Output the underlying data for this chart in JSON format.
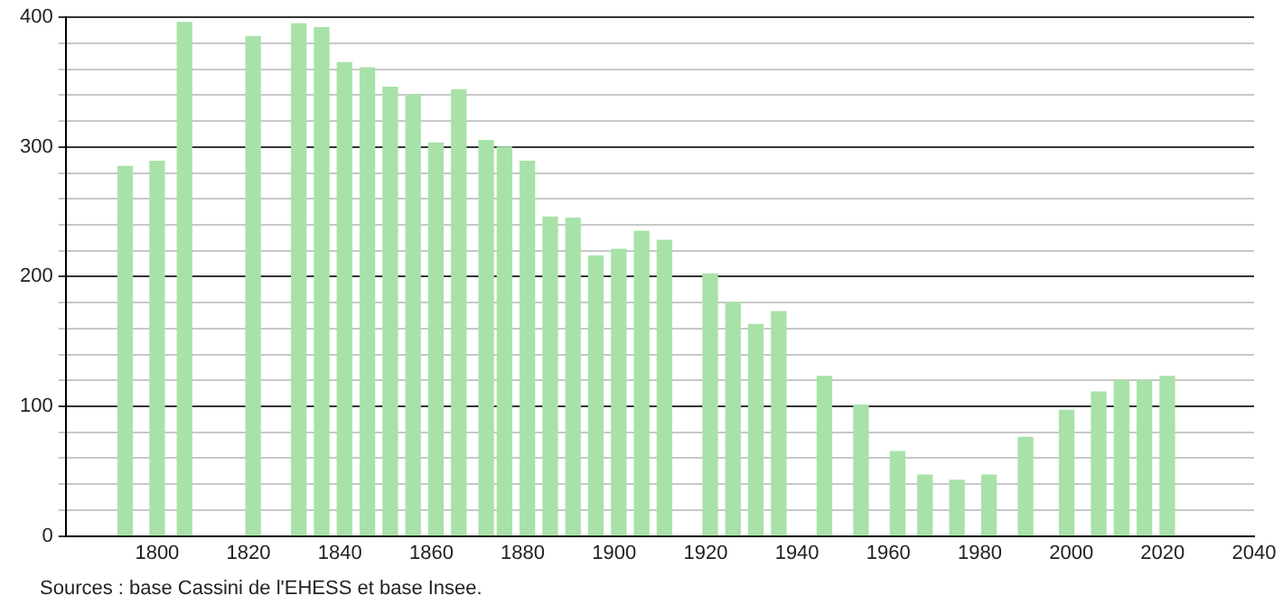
{
  "chart_data": {
    "type": "bar",
    "color": "#a8e2a8",
    "x": [
      1793,
      1800,
      1806,
      1821,
      1831,
      1836,
      1841,
      1846,
      1851,
      1856,
      1861,
      1866,
      1872,
      1876,
      1881,
      1886,
      1891,
      1896,
      1901,
      1906,
      1911,
      1921,
      1926,
      1931,
      1936,
      1946,
      1954,
      1962,
      1968,
      1975,
      1982,
      1990,
      1999,
      2006,
      2011,
      2016,
      2021
    ],
    "values": [
      285,
      289,
      396,
      385,
      395,
      392,
      365,
      361,
      346,
      340,
      303,
      344,
      305,
      300,
      289,
      246,
      245,
      216,
      221,
      235,
      228,
      202,
      180,
      163,
      173,
      123,
      101,
      65,
      47,
      43,
      47,
      76,
      97,
      111,
      120,
      120,
      123
    ],
    "xlim": [
      1780,
      2040
    ],
    "xticks": [
      1800,
      1820,
      1840,
      1860,
      1880,
      1900,
      1920,
      1940,
      1960,
      1980,
      2000,
      2020,
      2040
    ],
    "ylim": [
      0,
      400
    ],
    "yticks": [
      0,
      {
        "value": 20,
        "label": null
      },
      {
        "value": 40,
        "label": null
      },
      {
        "value": 60,
        "label": null
      },
      {
        "value": 80,
        "label": null
      },
      100,
      {
        "value": 120,
        "label": null
      },
      {
        "value": 140,
        "label": null
      },
      {
        "value": 160,
        "label": null
      },
      {
        "value": 180,
        "label": null
      },
      200,
      {
        "value": 220,
        "label": null
      },
      {
        "value": 240,
        "label": null
      },
      {
        "value": 260,
        "label": null
      },
      {
        "value": 280,
        "label": null
      },
      300,
      {
        "value": 320,
        "label": null
      },
      {
        "value": 340,
        "label": null
      },
      {
        "value": 360,
        "label": null
      },
      {
        "value": 380,
        "label": null
      },
      400
    ],
    "grid": "y",
    "annotations": [
      "Sources : base Cassini de l'EHESS et base Insee."
    ]
  }
}
